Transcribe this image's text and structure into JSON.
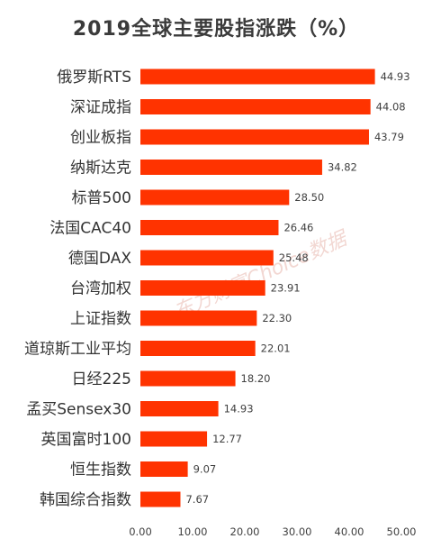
{
  "chart_data": {
    "type": "bar",
    "orientation": "horizontal",
    "title": "2019全球主要股指涨跌（%）",
    "categories": [
      "俄罗斯RTS",
      "深证成指",
      "创业板指",
      "纳斯达克",
      "标普500",
      "法国CAC40",
      "德国DAX",
      "台湾加权",
      "上证指数",
      "道琼斯工业平均",
      "日经225",
      "孟买Sensex30",
      "英国富时100",
      "恒生指数",
      "韩国综合指数"
    ],
    "values": [
      44.93,
      44.08,
      43.79,
      34.82,
      28.5,
      26.46,
      25.48,
      23.91,
      22.3,
      22.01,
      18.2,
      14.93,
      12.77,
      9.07,
      7.67
    ],
    "value_labels": [
      "44.93",
      "44.08",
      "43.79",
      "34.82",
      "28.50",
      "26.46",
      "25.48",
      "23.91",
      "22.30",
      "22.01",
      "18.20",
      "14.93",
      "12.77",
      "9.07",
      "7.67"
    ],
    "x_ticks": [
      "0.00",
      "10.00",
      "20.00",
      "30.00",
      "40.00",
      "50.00"
    ],
    "xlim": [
      0,
      50
    ],
    "bar_color": "#ff3300",
    "grid": false,
    "legend": "none",
    "watermark": "东方财富Choice数据"
  }
}
